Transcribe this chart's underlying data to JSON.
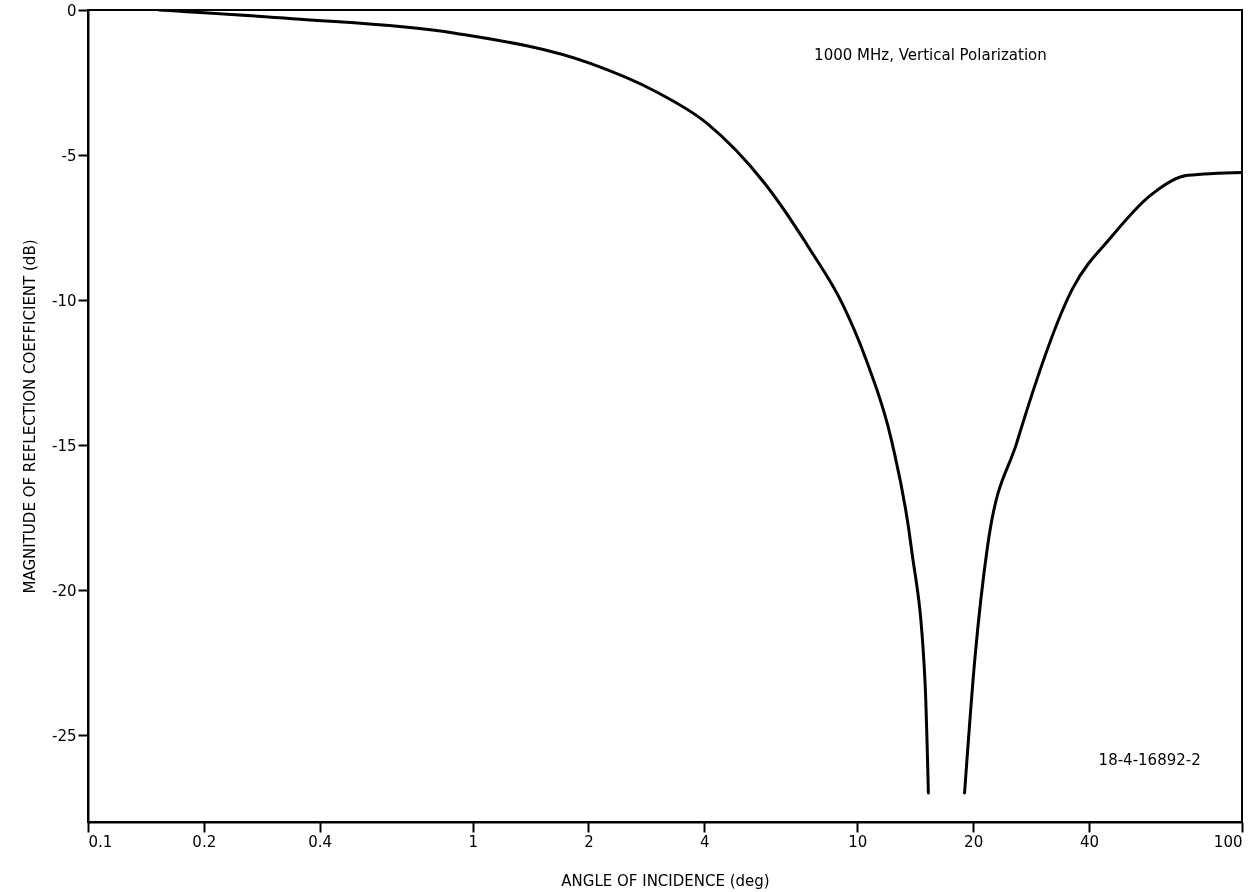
{
  "chart_data": {
    "type": "line",
    "xlabel": "ANGLE OF INCIDENCE (deg)",
    "ylabel": "MAGNITUDE OF REFLECTION COEFFICIENT (dB)",
    "annotations": [
      "1000 MHz, Vertical Polarization",
      "18-4-16892-2"
    ],
    "log": "x",
    "xlim": [
      0.1,
      100
    ],
    "xticks": [
      0.1,
      0.2,
      0.4,
      1,
      2,
      4,
      10,
      20,
      40,
      100
    ],
    "ylim": [
      -28,
      0
    ],
    "yticks": [
      0,
      -5,
      -10,
      -15,
      -20,
      -25
    ],
    "grid": false,
    "marker": "none",
    "line_style": "solid",
    "x": [
      0.153,
      0.34,
      0.9,
      2.03,
      2.98,
      4.06,
      5.76,
      7.57,
      9.12,
      10.5,
      12.3,
      13.8,
      15.0,
      15.3,
      17,
      19.0,
      20.2,
      21.8,
      26.0,
      36.3,
      45.9,
      57.7,
      72.3,
      100
    ],
    "series": [
      {
        "color": "#000000",
        "values": [
          0,
          -0.3,
          -0.8,
          -1.85,
          -2.8,
          -3.9,
          -6.0,
          -8.3,
          -10.1,
          -12.0,
          -14.9,
          -18.5,
          -23.2,
          -27,
          null,
          -27,
          -22.4,
          -18.5,
          -14.9,
          -9.6,
          -7.8,
          -6.4,
          -5.7,
          -5.6
        ]
      }
    ]
  }
}
